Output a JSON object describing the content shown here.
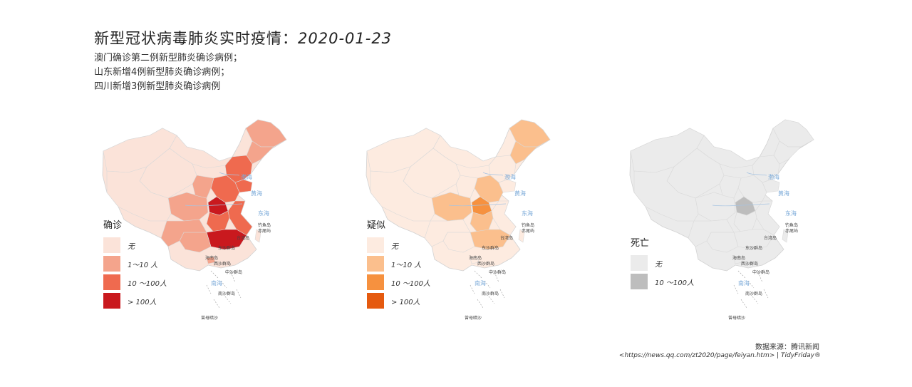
{
  "title": {
    "prefix": "新型冠状病毒肺炎实时疫情：",
    "date": "2020-01-23"
  },
  "subtitle": [
    "澳门确诊第二例新型肺炎确诊病例；",
    "山东新增4例新型肺炎确诊病例；",
    "四川新增3例新型肺炎确诊病例"
  ],
  "map_labels": {
    "sea_bohai": "渤海",
    "sea_huanghai": "黄海",
    "sea_donghai": "东海",
    "sea_nanhai": "南海",
    "taiwan": "台湾岛",
    "diaoyu": "钓鱼岛",
    "chiwei": "赤尾屿",
    "dongsha": "东沙群岛",
    "hainan": "海南岛",
    "xisha": "西沙群岛",
    "zhongsha": "中沙群岛",
    "nansha": "南沙群岛",
    "zengmu": "曾母暗沙"
  },
  "panels": [
    {
      "id": "confirmed",
      "legend_title": "确诊",
      "legend": [
        {
          "label": "无",
          "color": "#fbe3d9"
        },
        {
          "label": "1～10 人",
          "color": "#f4a48c"
        },
        {
          "label": "10 ～100人",
          "color": "#ef6a4f"
        },
        {
          "label": "> 100人",
          "color": "#c9191e"
        }
      ],
      "fills": {
        "base": "#fbe3d9",
        "mid": "#f4a48c",
        "high": "#ef6a4f",
        "max": "#c9191e"
      }
    },
    {
      "id": "suspected",
      "legend_title": "疑似",
      "legend": [
        {
          "label": "无",
          "color": "#fdebe0"
        },
        {
          "label": "1～10 人",
          "color": "#fbbf8d"
        },
        {
          "label": "10 ～100人",
          "color": "#f6913f"
        },
        {
          "label": "> 100人",
          "color": "#e55a0f"
        }
      ],
      "fills": {
        "base": "#fdebe0",
        "mid": "#fbbf8d",
        "high": "#f6913f",
        "max": "#e55a0f"
      }
    },
    {
      "id": "deaths",
      "legend_title": "死亡",
      "legend": [
        {
          "label": "无",
          "color": "#ebebeb"
        },
        {
          "label": "10 ～100人",
          "color": "#bdbdbd"
        }
      ],
      "fills": {
        "base": "#ebebeb",
        "mid": "#ebebeb",
        "high": "#ebebeb",
        "max": "#bdbdbd"
      }
    }
  ],
  "source": "数据来源：腾讯新闻",
  "url": "<https://news.qq.com/zt2020/page/feiyan.htm> | TidyFriday®"
}
